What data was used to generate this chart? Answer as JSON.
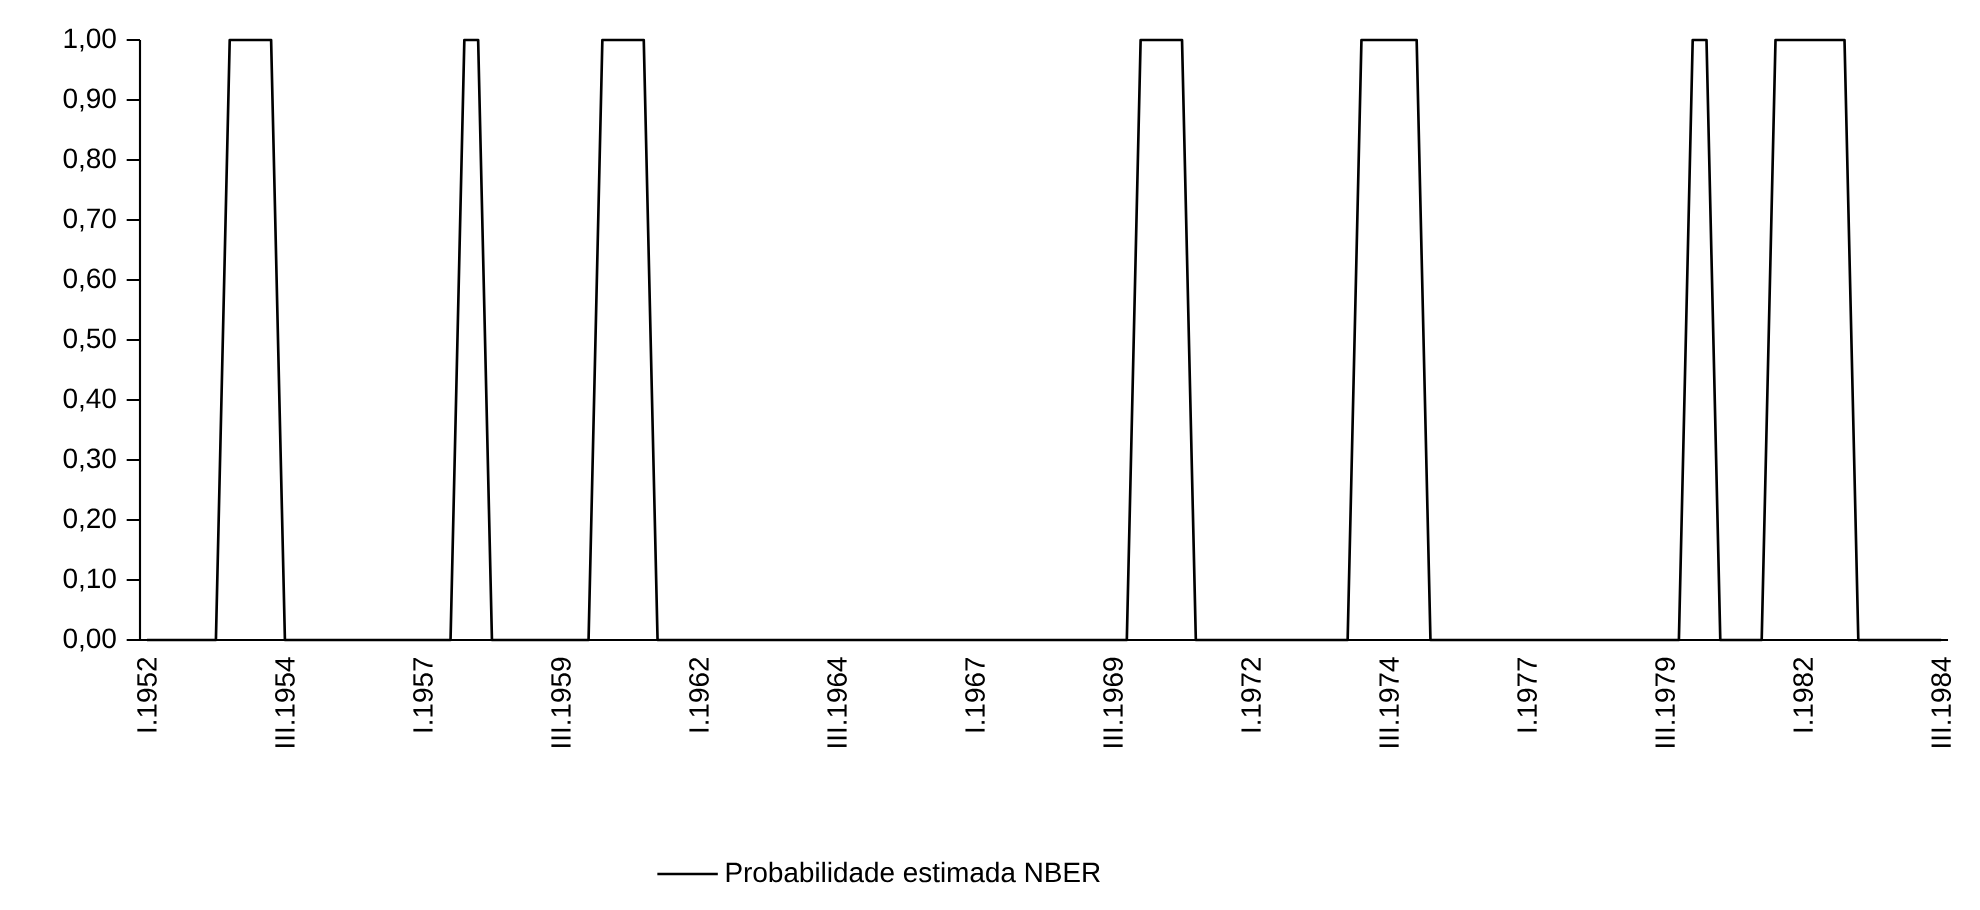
{
  "chart_data": {
    "type": "line",
    "categories": [
      "I.1952",
      null,
      null,
      null,
      null,
      null,
      null,
      null,
      null,
      null,
      "III.1954",
      null,
      null,
      null,
      null,
      null,
      null,
      null,
      null,
      null,
      "I.1957",
      null,
      null,
      null,
      null,
      null,
      null,
      null,
      null,
      null,
      "III.1959",
      null,
      null,
      null,
      null,
      null,
      null,
      null,
      null,
      null,
      "I.1962",
      null,
      null,
      null,
      null,
      null,
      null,
      null,
      null,
      null,
      "III.1964",
      null,
      null,
      null,
      null,
      null,
      null,
      null,
      null,
      null,
      "I.1967",
      null,
      null,
      null,
      null,
      null,
      null,
      null,
      null,
      null,
      "III.1969",
      null,
      null,
      null,
      null,
      null,
      null,
      null,
      null,
      null,
      "I.1972",
      null,
      null,
      null,
      null,
      null,
      null,
      null,
      null,
      null,
      "III.1974",
      null,
      null,
      null,
      null,
      null,
      null,
      null,
      null,
      null,
      "I.1977",
      null,
      null,
      null,
      null,
      null,
      null,
      null,
      null,
      null,
      "III.1979",
      null,
      null,
      null,
      null,
      null,
      null,
      null,
      null,
      null,
      "I.1982",
      null,
      null,
      null,
      null,
      null,
      null,
      null,
      null,
      null,
      "III.1984"
    ],
    "series": [
      {
        "name": "Probabilidade estimada NBER",
        "color": "#000000",
        "values": [
          0,
          0,
          0,
          0,
          0,
          0,
          1,
          1,
          1,
          1,
          0,
          0,
          0,
          0,
          0,
          0,
          0,
          0,
          0,
          0,
          0,
          0,
          0,
          1,
          1,
          0,
          0,
          0,
          0,
          0,
          0,
          0,
          0,
          1,
          1,
          1,
          1,
          0,
          0,
          0,
          0,
          0,
          0,
          0,
          0,
          0,
          0,
          0,
          0,
          0,
          0,
          0,
          0,
          0,
          0,
          0,
          0,
          0,
          0,
          0,
          0,
          0,
          0,
          0,
          0,
          0,
          0,
          0,
          0,
          0,
          0,
          0,
          1,
          1,
          1,
          1,
          0,
          0,
          0,
          0,
          0,
          0,
          0,
          0,
          0,
          0,
          0,
          0,
          1,
          1,
          1,
          1,
          1,
          0,
          0,
          0,
          0,
          0,
          0,
          0,
          0,
          0,
          0,
          0,
          0,
          0,
          0,
          0,
          0,
          0,
          0,
          0,
          1,
          1,
          0,
          0,
          0,
          0,
          1,
          1,
          1,
          1,
          1,
          1,
          0,
          0,
          0,
          0,
          0,
          0,
          0
        ]
      }
    ],
    "ylim": [
      0,
      1
    ],
    "yticks": [
      {
        "value": 0,
        "label": "0,00"
      },
      {
        "value": 0.1,
        "label": "0,10"
      },
      {
        "value": 0.2,
        "label": "0,20"
      },
      {
        "value": 0.3,
        "label": "0,30"
      },
      {
        "value": 0.4,
        "label": "0,40"
      },
      {
        "value": 0.5,
        "label": "0,50"
      },
      {
        "value": 0.6,
        "label": "0,60"
      },
      {
        "value": 0.7,
        "label": "0,70"
      },
      {
        "value": 0.8,
        "label": "0,80"
      },
      {
        "value": 0.9,
        "label": "0,90"
      },
      {
        "value": 1,
        "label": "1,00"
      }
    ],
    "grid": false,
    "legend": "bottom",
    "marker": "none",
    "line_style": "solid"
  }
}
